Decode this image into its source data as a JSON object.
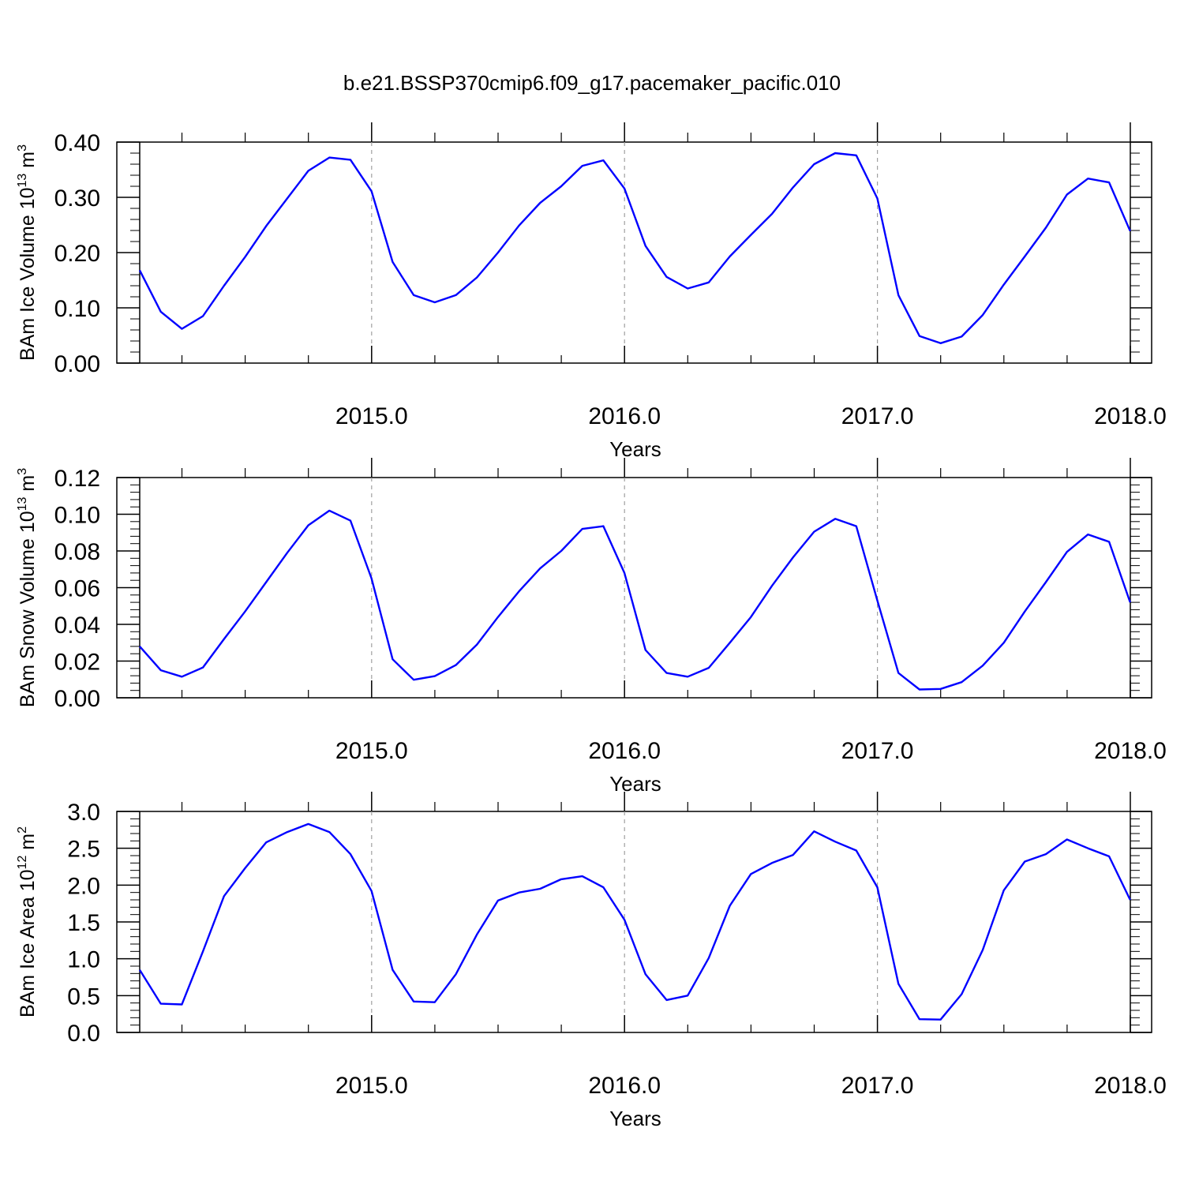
{
  "figure": {
    "title": "b.e21.BSSP370cmip6.f09_g17.pacemaker_pacific.010"
  },
  "colors": {
    "series": "#0000ff",
    "axis": "#000000",
    "year_divider": "#a0a0a0"
  },
  "chart_data": [
    {
      "type": "line",
      "ylabel": "BAm Ice Volume 10",
      "ylabel_exp": "13",
      "ylabel_unit": "m",
      "ylabel_unit_exp": "3",
      "xlabel": "Years",
      "xlim": [
        2014.083,
        2018.0
      ],
      "ylim": [
        0.0,
        0.4
      ],
      "yticks": [
        "0.00",
        "0.10",
        "0.20",
        "0.30",
        "0.40"
      ],
      "xticks": [
        "2015.0",
        "2016.0",
        "2017.0",
        "2018.0"
      ],
      "grid": "vertical dashed at year boundaries",
      "x_start": 2014.083,
      "x_step": 0.08333,
      "values": [
        0.168,
        0.093,
        0.062,
        0.085,
        0.14,
        0.192,
        0.248,
        0.298,
        0.348,
        0.372,
        0.368,
        0.311,
        0.183,
        0.123,
        0.11,
        0.123,
        0.155,
        0.2,
        0.249,
        0.29,
        0.32,
        0.357,
        0.367,
        0.316,
        0.212,
        0.156,
        0.135,
        0.146,
        0.193,
        0.232,
        0.27,
        0.318,
        0.36,
        0.38,
        0.376,
        0.298,
        0.123,
        0.049,
        0.036,
        0.048,
        0.087,
        0.142,
        0.193,
        0.245,
        0.305,
        0.334,
        0.327,
        0.239
      ]
    },
    {
      "type": "line",
      "ylabel": "BAm Snow Volume 10",
      "ylabel_exp": "13",
      "ylabel_unit": "m",
      "ylabel_unit_exp": "3",
      "xlabel": "Years",
      "xlim": [
        2014.083,
        2018.0
      ],
      "ylim": [
        0.0,
        0.12
      ],
      "yticks": [
        "0.00",
        "0.02",
        "0.04",
        "0.06",
        "0.08",
        "0.10",
        "0.12"
      ],
      "xticks": [
        "2015.0",
        "2016.0",
        "2017.0",
        "2018.0"
      ],
      "grid": "vertical dashed at year boundaries",
      "x_start": 2014.083,
      "x_step": 0.08333,
      "values": [
        0.028,
        0.015,
        0.0115,
        0.0165,
        0.032,
        0.047,
        0.063,
        0.079,
        0.094,
        0.102,
        0.0965,
        0.065,
        0.021,
        0.0098,
        0.0118,
        0.0178,
        0.029,
        0.044,
        0.058,
        0.0705,
        0.08,
        0.092,
        0.0935,
        0.068,
        0.026,
        0.0135,
        0.0115,
        0.0163,
        0.03,
        0.044,
        0.061,
        0.0765,
        0.0905,
        0.0975,
        0.0935,
        0.053,
        0.0135,
        0.0045,
        0.0048,
        0.0085,
        0.0175,
        0.03,
        0.047,
        0.063,
        0.0795,
        0.089,
        0.085,
        0.052
      ]
    },
    {
      "type": "line",
      "ylabel": "BAm Ice Area 10",
      "ylabel_exp": "12",
      "ylabel_unit": "m",
      "ylabel_unit_exp": "2",
      "xlabel": "Years",
      "xlim": [
        2014.083,
        2018.0
      ],
      "ylim": [
        0.0,
        3.0
      ],
      "yticks": [
        "0.0",
        "0.5",
        "1.0",
        "1.5",
        "2.0",
        "2.5",
        "3.0"
      ],
      "xticks": [
        "2015.0",
        "2016.0",
        "2017.0",
        "2018.0"
      ],
      "grid": "vertical dashed at year boundaries",
      "x_start": 2014.083,
      "x_step": 0.08333,
      "values": [
        0.85,
        0.39,
        0.38,
        1.1,
        1.85,
        2.23,
        2.58,
        2.72,
        2.83,
        2.72,
        2.42,
        1.92,
        0.85,
        0.42,
        0.41,
        0.79,
        1.33,
        1.79,
        1.9,
        1.95,
        2.08,
        2.12,
        1.97,
        1.53,
        0.79,
        0.44,
        0.5,
        1.01,
        1.72,
        2.15,
        2.3,
        2.41,
        2.73,
        2.59,
        2.47,
        1.97,
        0.66,
        0.18,
        0.175,
        0.52,
        1.12,
        1.93,
        2.32,
        2.42,
        2.62,
        2.5,
        2.39,
        1.8
      ]
    }
  ]
}
